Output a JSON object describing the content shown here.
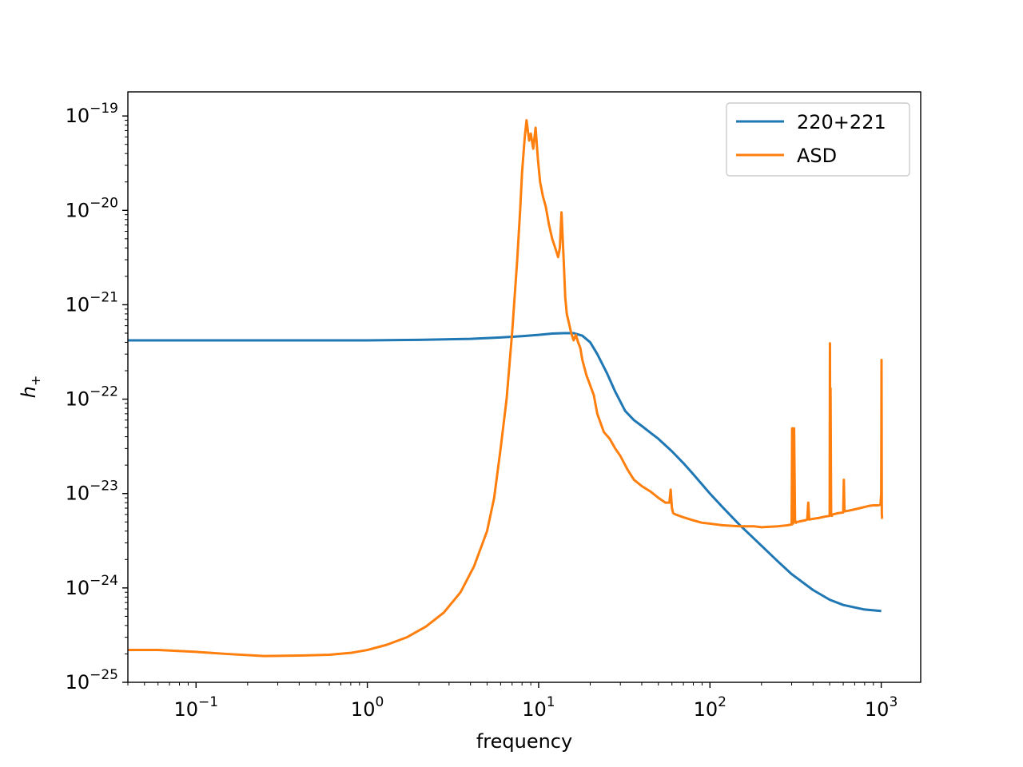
{
  "chart_data": {
    "type": "line",
    "title": "",
    "xlabel": "frequency",
    "ylabel_base": "h",
    "ylabel_sub": "+",
    "xscale": "log",
    "yscale": "log",
    "xlim": [
      0.04,
      1700
    ],
    "ylim": [
      1e-25,
      1.8e-19
    ],
    "grid": false,
    "legend_position": "top-right",
    "x_ticks": [
      {
        "value": 0.1,
        "base": "10",
        "exp": "−1"
      },
      {
        "value": 1,
        "base": "10",
        "exp": "0"
      },
      {
        "value": 10,
        "base": "10",
        "exp": "1"
      },
      {
        "value": 100,
        "base": "10",
        "exp": "2"
      },
      {
        "value": 1000,
        "base": "10",
        "exp": "3"
      }
    ],
    "y_ticks": [
      {
        "value": 1e-25,
        "base": "10",
        "exp": "−25"
      },
      {
        "value": 1e-24,
        "base": "10",
        "exp": "−24"
      },
      {
        "value": 1e-23,
        "base": "10",
        "exp": "−23"
      },
      {
        "value": 1e-22,
        "base": "10",
        "exp": "−22"
      },
      {
        "value": 1e-21,
        "base": "10",
        "exp": "−21"
      },
      {
        "value": 1e-20,
        "base": "10",
        "exp": "−20"
      },
      {
        "value": 1e-19,
        "base": "10",
        "exp": "−19"
      }
    ],
    "series": [
      {
        "name": "220+221",
        "color": "#1f77b4",
        "x": [
          0.04,
          0.1,
          0.3,
          1,
          2,
          4,
          6,
          8,
          10,
          12,
          14,
          16,
          18,
          20,
          22,
          25,
          28,
          32,
          36,
          40,
          45,
          50,
          60,
          70,
          80,
          100,
          120,
          150,
          200,
          250,
          300,
          400,
          500,
          600,
          800,
          1000
        ],
        "y": [
          4.2e-22,
          4.2e-22,
          4.2e-22,
          4.2e-22,
          4.25e-22,
          4.35e-22,
          4.5e-22,
          4.65e-22,
          4.8e-22,
          4.95e-22,
          5e-22,
          5e-22,
          4.7e-22,
          4e-22,
          3e-22,
          1.9e-22,
          1.2e-22,
          7.5e-23,
          6e-23,
          5.2e-23,
          4.4e-23,
          3.8e-23,
          2.8e-23,
          2.1e-23,
          1.6e-23,
          1e-23,
          7e-24,
          4.6e-24,
          2.8e-24,
          1.9e-24,
          1.4e-24,
          9.5e-25,
          7.5e-25,
          6.6e-25,
          5.9e-25,
          5.7e-25
        ]
      },
      {
        "name": "ASD",
        "color": "#ff7f0e",
        "x": [
          0.04,
          0.06,
          0.1,
          0.15,
          0.25,
          0.4,
          0.6,
          0.8,
          1.0,
          1.3,
          1.7,
          2.2,
          2.8,
          3.5,
          4.2,
          5.0,
          5.5,
          6.0,
          6.5,
          7.0,
          7.5,
          7.8,
          8.0,
          8.3,
          8.5,
          8.8,
          9.0,
          9.3,
          9.6,
          9.9,
          10.2,
          10.6,
          11.0,
          11.5,
          12.0,
          12.5,
          13.0,
          13.3,
          13.6,
          14.0,
          14.3,
          14.6,
          15.0,
          15.5,
          16.0,
          16.5,
          17.0,
          17.5,
          18.0,
          19.0,
          20.0,
          21.0,
          22.0,
          24.0,
          26.0,
          28.0,
          30.0,
          33.0,
          36.0,
          40.0,
          45.0,
          50.0,
          55.0,
          58.0,
          59.0,
          60.0,
          61.0,
          63.0,
          70.0,
          80.0,
          90.0,
          100.0,
          120.0,
          150.0,
          180.0,
          200.0,
          250.0,
          280.0,
          300.0,
          302.0,
          304.0,
          306.0,
          310.0,
          314.0,
          318.0,
          320.0,
          324.0,
          340.0,
          360.0,
          370.0,
          375.0,
          380.0,
          400.0,
          430.0,
          470.0,
          500.0,
          502.0,
          504.0,
          506.0,
          510.0,
          515.0,
          520.0,
          560.0,
          600.0,
          605.0,
          610.0,
          620.0,
          650.0,
          700.0,
          750.0,
          800.0,
          850.0,
          900.0,
          950.0,
          990.0,
          1000.0,
          1004.0,
          1008.0,
          1012.0,
          1020.0
        ],
        "y": [
          2.2e-25,
          2.2e-25,
          2.1e-25,
          2e-25,
          1.9e-25,
          1.92e-25,
          1.96e-25,
          2.05e-25,
          2.2e-25,
          2.5e-25,
          3e-25,
          3.9e-25,
          5.5e-25,
          9e-25,
          1.7e-24,
          4e-24,
          9e-24,
          3e-23,
          1e-22,
          5e-22,
          3e-21,
          1e-20,
          2.5e-20,
          6e-20,
          9e-20,
          5.5e-20,
          6.5e-20,
          4.5e-20,
          7.5e-20,
          3.5e-20,
          2e-20,
          1.4e-20,
          1.1e-20,
          7e-21,
          5e-21,
          4e-21,
          3.2e-21,
          4e-21,
          9.5e-21,
          3e-21,
          1.2e-21,
          8e-22,
          6.5e-22,
          5e-22,
          4.2e-22,
          4.8e-22,
          4e-22,
          3.5e-22,
          2.6e-22,
          1.8e-22,
          1.4e-22,
          1.1e-22,
          7e-23,
          4.5e-23,
          3.8e-23,
          3e-23,
          2.5e-23,
          1.8e-23,
          1.4e-23,
          1.2e-23,
          1.05e-23,
          9e-24,
          8e-24,
          8e-24,
          1.1e-23,
          7e-24,
          6.2e-24,
          6e-24,
          5.6e-24,
          5.2e-24,
          4.9e-24,
          4.8e-24,
          4.6e-24,
          4.5e-24,
          4.5e-24,
          4.4e-24,
          4.5e-24,
          4.6e-24,
          4.7e-24,
          4.9e-23,
          5e-24,
          4.8e-24,
          4.9e-23,
          5e-24,
          4.9e-24,
          5e-24,
          5e-24,
          5.1e-24,
          5.2e-24,
          5.3e-24,
          8e-24,
          5.3e-24,
          5.4e-24,
          5.5e-24,
          5.7e-24,
          5.8e-24,
          3.9e-22,
          6.5e-24,
          1.3e-22,
          6e-24,
          5.8e-24,
          6e-24,
          6.2e-24,
          6.3e-24,
          1.4e-23,
          6.5e-24,
          6.5e-24,
          6.6e-24,
          6.8e-24,
          7e-24,
          7.2e-24,
          7.4e-24,
          7.5e-24,
          7.5e-24,
          7.6e-24,
          1e-23,
          2.6e-22,
          6e-24,
          5.5e-24,
          5.5e-24
        ]
      }
    ]
  }
}
